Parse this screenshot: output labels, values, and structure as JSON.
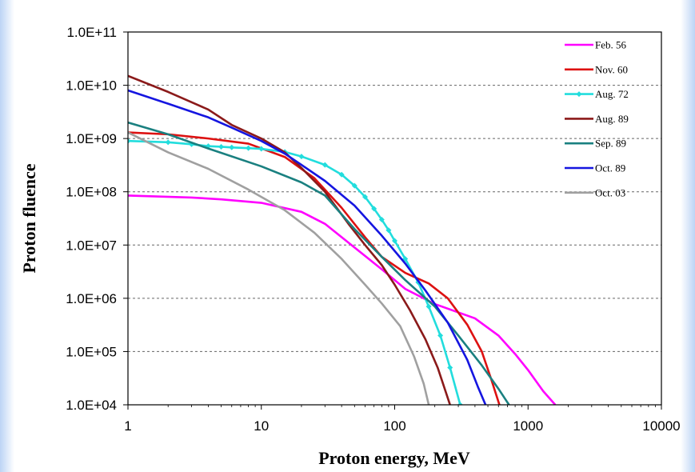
{
  "chart_data": {
    "type": "line",
    "title": "",
    "xlabel": "Proton energy, MeV",
    "ylabel": "Proton fluence",
    "xscale": "log",
    "yscale": "log",
    "xlim": [
      1,
      10000
    ],
    "ylim": [
      10000,
      100000000000
    ],
    "x_ticks": [
      "1",
      "10",
      "100",
      "1000",
      "10000"
    ],
    "y_ticks": [
      "1.0E+04",
      "1.0E+05",
      "1.0E+06",
      "1.0E+07",
      "1.0E+08",
      "1.0E+09",
      "1.0E+10",
      "1.0E+11"
    ],
    "grid": "horizontal dashed",
    "legend_position": "top-right",
    "series": [
      {
        "name": "Feb. 56",
        "color": "#ff00ff",
        "marker": "none",
        "points": [
          [
            1,
            85000000
          ],
          [
            3,
            78000000
          ],
          [
            5,
            72000000
          ],
          [
            10,
            62000000
          ],
          [
            20,
            42000000
          ],
          [
            30,
            25000000
          ],
          [
            50,
            9000000
          ],
          [
            80,
            3500000
          ],
          [
            120,
            1500000
          ],
          [
            200,
            780000
          ],
          [
            400,
            420000
          ],
          [
            600,
            200000
          ],
          [
            800,
            90000
          ],
          [
            1000,
            45000
          ],
          [
            1300,
            18000
          ],
          [
            1600,
            10000
          ]
        ]
      },
      {
        "name": "Nov. 60",
        "color": "#dd1111",
        "marker": "none",
        "points": [
          [
            1,
            1300000000
          ],
          [
            2,
            1200000000
          ],
          [
            4,
            1000000000
          ],
          [
            8,
            800000000
          ],
          [
            15,
            450000000
          ],
          [
            25,
            180000000
          ],
          [
            40,
            50000000
          ],
          [
            60,
            14000000
          ],
          [
            80,
            6000000
          ],
          [
            120,
            3000000
          ],
          [
            180,
            1900000
          ],
          [
            250,
            1000000
          ],
          [
            350,
            320000
          ],
          [
            450,
            100000
          ],
          [
            530,
            30000
          ],
          [
            610,
            10000
          ]
        ]
      },
      {
        "name": "Aug. 72",
        "color": "#22dddd",
        "marker": "diamond",
        "points": [
          [
            1,
            900000000
          ],
          [
            2,
            850000000
          ],
          [
            3,
            780000000
          ],
          [
            4,
            720000000
          ],
          [
            5,
            700000000
          ],
          [
            6,
            680000000
          ],
          [
            8,
            660000000
          ],
          [
            10,
            640000000
          ],
          [
            15,
            560000000
          ],
          [
            20,
            460000000
          ],
          [
            30,
            320000000
          ],
          [
            40,
            210000000
          ],
          [
            50,
            130000000
          ],
          [
            60,
            80000000
          ],
          [
            70,
            48000000
          ],
          [
            80,
            30000000
          ],
          [
            90,
            19000000
          ],
          [
            100,
            12000000
          ],
          [
            120,
            5500000
          ],
          [
            150,
            2000000
          ],
          [
            180,
            700000
          ],
          [
            220,
            200000
          ],
          [
            260,
            50000
          ],
          [
            310,
            10000
          ]
        ]
      },
      {
        "name": "Aug. 89",
        "color": "#8b1a1a",
        "marker": "none",
        "points": [
          [
            1,
            15000000000
          ],
          [
            2,
            7500000000
          ],
          [
            4,
            3500000000
          ],
          [
            6,
            1800000000
          ],
          [
            10,
            1000000000
          ],
          [
            15,
            550000000
          ],
          [
            20,
            280000000
          ],
          [
            30,
            100000000
          ],
          [
            45,
            25000000
          ],
          [
            60,
            10000000
          ],
          [
            80,
            4200000
          ],
          [
            100,
            1800000
          ],
          [
            130,
            600000
          ],
          [
            170,
            170000
          ],
          [
            210,
            50000
          ],
          [
            260,
            10000
          ]
        ]
      },
      {
        "name": "Sep. 89",
        "color": "#1a8080",
        "marker": "none",
        "points": [
          [
            1,
            2000000000
          ],
          [
            2,
            1200000000
          ],
          [
            4,
            650000000
          ],
          [
            10,
            300000000
          ],
          [
            20,
            150000000
          ],
          [
            30,
            85000000
          ],
          [
            50,
            20000000
          ],
          [
            80,
            6000000
          ],
          [
            120,
            2200000
          ],
          [
            200,
            700000
          ],
          [
            300,
            200000
          ],
          [
            450,
            55000
          ],
          [
            600,
            20000
          ],
          [
            720,
            10000
          ]
        ]
      },
      {
        "name": "Oct. 89",
        "color": "#1515e0",
        "marker": "none",
        "points": [
          [
            1,
            8000000000
          ],
          [
            2,
            4500000000
          ],
          [
            4,
            2500000000
          ],
          [
            6,
            1600000000
          ],
          [
            10,
            900000000
          ],
          [
            15,
            520000000
          ],
          [
            20,
            320000000
          ],
          [
            30,
            160000000
          ],
          [
            50,
            55000000
          ],
          [
            80,
            15000000
          ],
          [
            120,
            4500000
          ],
          [
            170,
            1400000
          ],
          [
            250,
            350000
          ],
          [
            350,
            70000
          ],
          [
            420,
            22000
          ],
          [
            480,
            10000
          ]
        ]
      },
      {
        "name": "Oct. 03",
        "color": "#a0a0a0",
        "marker": "none",
        "points": [
          [
            1,
            1300000000
          ],
          [
            2,
            550000000
          ],
          [
            4,
            270000000
          ],
          [
            8,
            110000000
          ],
          [
            15,
            45000000
          ],
          [
            25,
            17000000
          ],
          [
            40,
            5500000
          ],
          [
            60,
            1800000
          ],
          [
            80,
            800000
          ],
          [
            110,
            300000
          ],
          [
            140,
            80000
          ],
          [
            165,
            25000
          ],
          [
            180,
            10000
          ]
        ]
      }
    ]
  }
}
